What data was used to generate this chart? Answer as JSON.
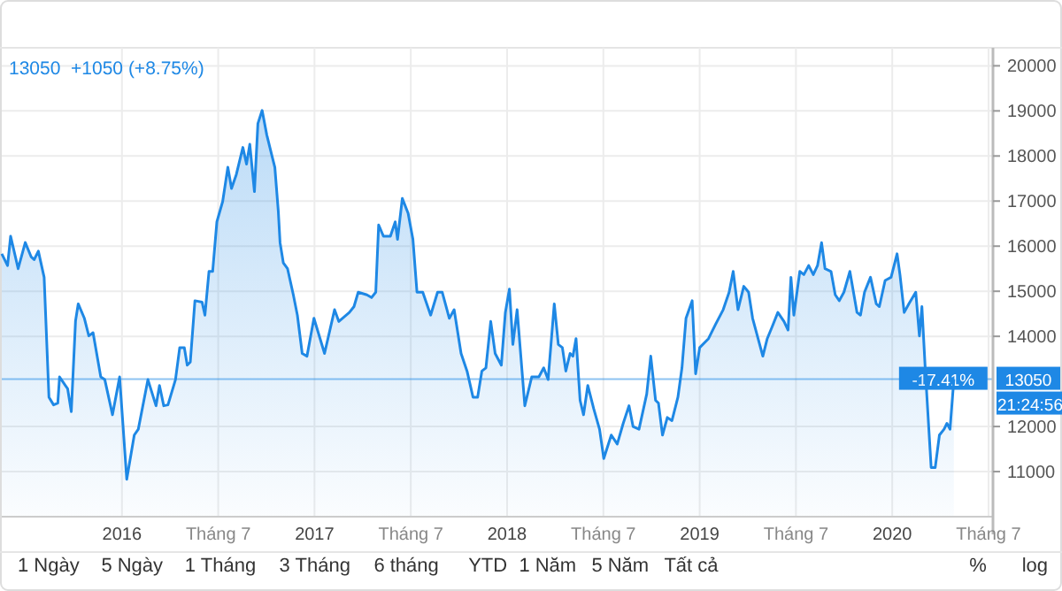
{
  "chart_data": {
    "type": "area",
    "x": [
      2015.376,
      2015.406,
      2015.422,
      2015.461,
      2015.498,
      2015.529,
      2015.544,
      2015.566,
      2015.596,
      2015.621,
      2015.645,
      2015.667,
      2015.676,
      2015.706,
      2015.718,
      2015.737,
      2015.759,
      2015.773,
      2015.805,
      2015.828,
      2015.85,
      2015.89,
      2015.911,
      2015.951,
      2015.988,
      2016.025,
      2016.064,
      2016.085,
      2016.135,
      2016.177,
      2016.195,
      2016.217,
      2016.239,
      2016.278,
      2016.3,
      2016.324,
      2016.339,
      2016.355,
      2016.379,
      2016.416,
      2016.431,
      2016.452,
      2016.471,
      2016.493,
      2016.523,
      2016.55,
      2016.569,
      2016.594,
      2016.628,
      2016.647,
      2016.664,
      2016.688,
      2016.706,
      2016.728,
      2016.752,
      2016.777,
      2016.794,
      2016.812,
      2016.821,
      2016.838,
      2016.86,
      2016.89,
      2016.911,
      2016.936,
      2016.961,
      2016.997,
      2017.052,
      2017.104,
      2017.126,
      2017.181,
      2017.205,
      2017.227,
      2017.272,
      2017.296,
      2017.318,
      2017.333,
      2017.358,
      2017.394,
      2017.419,
      2017.431,
      2017.456,
      2017.486,
      2017.511,
      2017.532,
      2017.562,
      2017.603,
      2017.639,
      2017.663,
      2017.7,
      2017.725,
      2017.761,
      2017.792,
      2017.823,
      2017.847,
      2017.869,
      2017.89,
      2017.915,
      2017.938,
      2017.97,
      2017.991,
      2018.012,
      2018.03,
      2018.052,
      2018.092,
      2018.128,
      2018.165,
      2018.19,
      2018.213,
      2018.245,
      2018.266,
      2018.287,
      2018.305,
      2018.327,
      2018.342,
      2018.358,
      2018.379,
      2018.397,
      2018.419,
      2018.45,
      2018.48,
      2018.502,
      2018.541,
      2018.572,
      2018.603,
      2018.633,
      2018.654,
      2018.685,
      2018.725,
      2018.746,
      2018.771,
      2018.786,
      2018.807,
      2018.832,
      2018.856,
      2018.887,
      2018.908,
      2018.929,
      2018.961,
      2018.979,
      2019.0,
      2019.046,
      2019.083,
      2019.122,
      2019.153,
      2019.174,
      2019.199,
      2019.229,
      2019.254,
      2019.275,
      2019.328,
      2019.351,
      2019.376,
      2019.406,
      2019.438,
      2019.459,
      2019.474,
      2019.489,
      2019.52,
      2019.541,
      2019.566,
      2019.59,
      2019.612,
      2019.633,
      2019.651,
      2019.682,
      2019.704,
      2019.725,
      2019.749,
      2019.78,
      2019.817,
      2019.835,
      2019.856,
      2019.887,
      2019.917,
      2019.933,
      2019.963,
      2019.994,
      2020.025,
      2020.04,
      2020.062,
      2020.086,
      2020.122,
      2020.141,
      2020.154,
      2020.172,
      2020.202,
      2020.223,
      2020.245,
      2020.269,
      2020.284,
      2020.3,
      2020.32
    ],
    "series": [
      {
        "color": "#1e88e5",
        "values": [
          15830,
          15570,
          16220,
          15500,
          16080,
          15760,
          15700,
          15890,
          15310,
          12650,
          12480,
          12520,
          13100,
          12910,
          12840,
          12330,
          14340,
          14720,
          14400,
          14010,
          14080,
          13100,
          13040,
          12260,
          13100,
          10830,
          11810,
          11940,
          13040,
          12460,
          12910,
          12460,
          12480,
          13040,
          13750,
          13750,
          13360,
          13430,
          14790,
          14760,
          14470,
          15440,
          15440,
          16540,
          16990,
          17750,
          17280,
          17590,
          18190,
          17820,
          18260,
          17210,
          18720,
          19010,
          18470,
          18040,
          17750,
          16770,
          16080,
          15630,
          15500,
          14920,
          14470,
          13620,
          13560,
          14400,
          13620,
          14590,
          14330,
          14530,
          14660,
          14980,
          14920,
          14860,
          14980,
          16470,
          16220,
          16220,
          16540,
          16150,
          17060,
          16730,
          16150,
          14980,
          14980,
          14470,
          14980,
          14980,
          14400,
          14590,
          13620,
          13230,
          12650,
          12650,
          13230,
          13300,
          14330,
          13620,
          13360,
          14530,
          15050,
          13820,
          14590,
          12460,
          13100,
          13100,
          13300,
          13040,
          14720,
          13820,
          13750,
          13230,
          13620,
          13560,
          13950,
          12580,
          12260,
          12910,
          12390,
          11940,
          11290,
          11810,
          11610,
          12070,
          12460,
          12000,
          11940,
          12720,
          13560,
          12580,
          12520,
          11810,
          12200,
          12130,
          12650,
          13300,
          14400,
          14790,
          13170,
          13750,
          13950,
          14270,
          14590,
          14980,
          15440,
          14590,
          15110,
          14980,
          14400,
          13560,
          13950,
          14210,
          14530,
          14330,
          14140,
          15310,
          14470,
          15440,
          15370,
          15570,
          15370,
          15570,
          16080,
          15500,
          15440,
          14920,
          14790,
          14980,
          15440,
          14530,
          14470,
          14980,
          15310,
          14720,
          14660,
          15240,
          15310,
          15830,
          15370,
          14530,
          14720,
          14980,
          14010,
          14660,
          13230,
          11090,
          11090,
          11810,
          11940,
          12070,
          11940,
          13050
        ]
      }
    ],
    "xlim": [
      2015.376,
      2020.523
    ],
    "xticks": [
      {
        "value": 2016,
        "label": "2016"
      },
      {
        "value": 2016.5,
        "label": "Tháng 7"
      },
      {
        "value": 2017,
        "label": "2017"
      },
      {
        "value": 2017.5,
        "label": "Tháng 7"
      },
      {
        "value": 2018,
        "label": "2018"
      },
      {
        "value": 2018.5,
        "label": "Tháng 7"
      },
      {
        "value": 2019,
        "label": "2019"
      },
      {
        "value": 2019.5,
        "label": "Tháng 7"
      },
      {
        "value": 2020,
        "label": "2020"
      },
      {
        "value": 2020.5,
        "label": "Tháng 7"
      }
    ],
    "ylim": [
      10000,
      20400
    ],
    "yticks": [
      11000,
      12000,
      14000,
      15000,
      16000,
      17000,
      18000,
      19000,
      20000
    ],
    "grid": true,
    "ref_lines": [
      {
        "axis": "y",
        "value": 13050,
        "label": "13050",
        "color": "#1e88e5"
      }
    ],
    "annotations": [
      "13050  +1050 (+8.75%)",
      {
        "text": "-17.41%",
        "x": 2020.32,
        "y": 13050
      },
      "21:24:56",
      "1 Ngày",
      "5 Ngày",
      "1 Tháng",
      "3 Tháng",
      "6 tháng",
      "YTD",
      "1 Năm",
      "5 Năm",
      "Tất cả",
      "%",
      "log"
    ]
  }
}
